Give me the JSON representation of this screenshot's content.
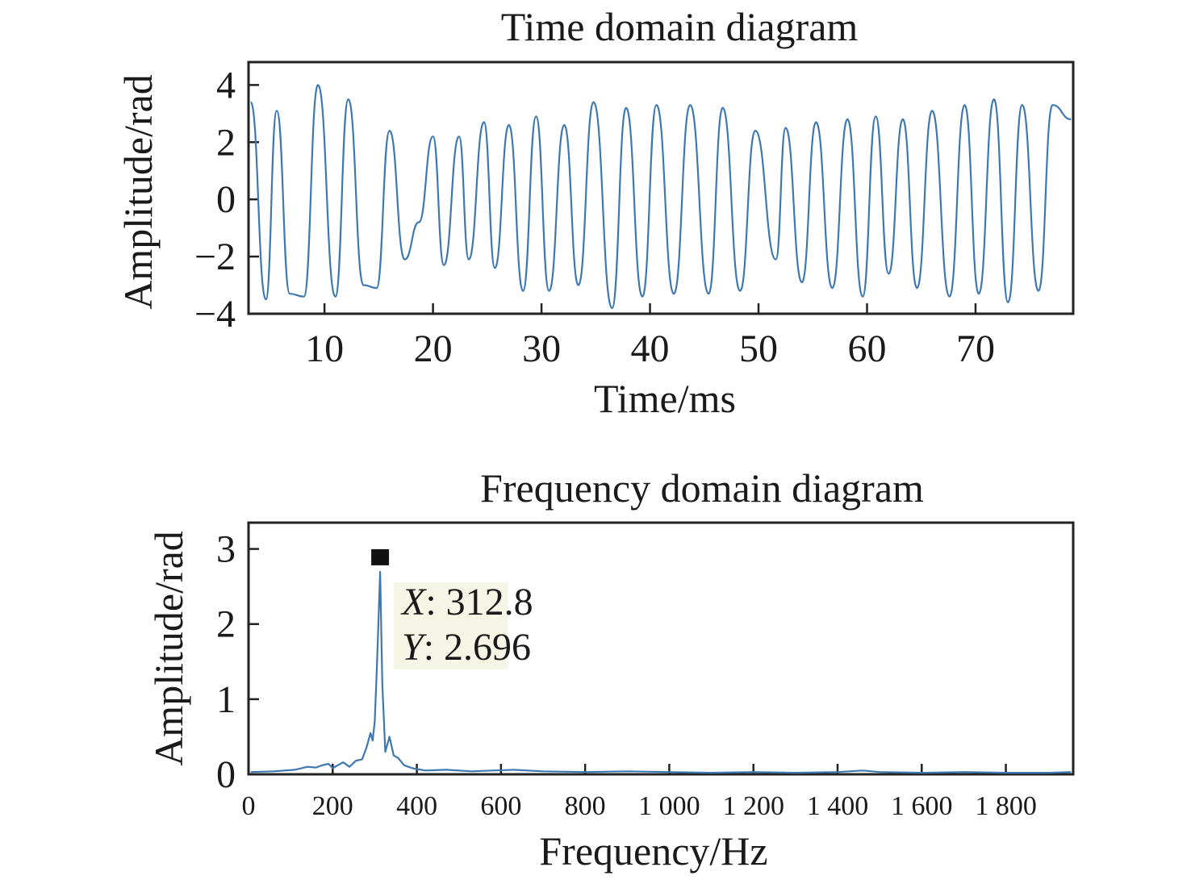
{
  "chart_data": [
    {
      "type": "line",
      "title": "Time domain diagram",
      "xlabel": "Time/ms",
      "ylabel": "Amplitude/rad",
      "xlim": [
        3,
        79
      ],
      "ylim": [
        -4,
        4.8
      ],
      "xticks": [
        10,
        20,
        30,
        40,
        50,
        60,
        70
      ],
      "xtick_labels": [
        "10",
        "20",
        "30",
        "40",
        "50",
        "60",
        "70"
      ],
      "yticks": [
        4,
        2,
        0,
        -2,
        -4
      ],
      "ytick_labels": [
        "4",
        "2",
        "0",
        "−2",
        "−4"
      ],
      "grid": false,
      "series": [
        {
          "color": "#3f78b0",
          "x": [
            3.2,
            4.6,
            5.6,
            6.8,
            8.1,
            9.4,
            11.0,
            12.2,
            13.6,
            14.8,
            16.0,
            17.4,
            18.7,
            20.0,
            21.0,
            22.4,
            23.3,
            24.7,
            25.7,
            27.0,
            28.3,
            29.5,
            30.7,
            32.1,
            33.4,
            34.8,
            36.5,
            37.8,
            39.3,
            40.6,
            42.2,
            43.7,
            45.4,
            46.7,
            48.3,
            49.7,
            51.6,
            52.5,
            54.0,
            55.3,
            56.8,
            58.2,
            59.6,
            60.8,
            62.0,
            63.3,
            64.6,
            66.0,
            67.6,
            69.0,
            70.3,
            71.7,
            73.0,
            74.3,
            75.8,
            77.1,
            78.8
          ],
          "y": [
            3.4,
            -3.5,
            3.1,
            -3.3,
            -3.4,
            4.0,
            -3.4,
            3.5,
            -3.0,
            -3.1,
            2.4,
            -2.1,
            -0.8,
            2.2,
            -2.3,
            2.2,
            -2.1,
            2.7,
            -2.4,
            2.6,
            -3.2,
            2.9,
            -3.2,
            2.6,
            -3.0,
            3.4,
            -3.8,
            3.2,
            -3.4,
            3.3,
            -3.3,
            3.3,
            -3.3,
            3.2,
            -3.2,
            2.4,
            -2.1,
            2.5,
            -2.9,
            2.7,
            -3.1,
            2.8,
            -3.4,
            2.9,
            -2.6,
            2.8,
            -3.1,
            3.1,
            -3.4,
            3.3,
            -3.3,
            3.5,
            -3.6,
            3.3,
            -3.2,
            3.3,
            2.8
          ]
        }
      ]
    },
    {
      "type": "line",
      "title": "Frequency domain diagram",
      "xlabel": "Frequency/Hz",
      "ylabel": "Amplitude/rad",
      "xlim": [
        0,
        1960
      ],
      "ylim": [
        0,
        3.35
      ],
      "xticks": [
        0,
        200,
        400,
        600,
        800,
        1000,
        1200,
        1400,
        1600,
        1800
      ],
      "xtick_labels": [
        "0",
        "200",
        "400",
        "600",
        "800",
        "1 000",
        "1 200",
        "1 400",
        "1 600",
        "1 800"
      ],
      "yticks": [
        0,
        1,
        2,
        3
      ],
      "ytick_labels": [
        "0",
        "1",
        "2",
        "3"
      ],
      "grid": false,
      "series": [
        {
          "color": "#3f78b0",
          "x": [
            5,
            60,
            110,
            140,
            160,
            175,
            190,
            200,
            212,
            225,
            240,
            255,
            270,
            280,
            290,
            295,
            300,
            305,
            312.8,
            318,
            325,
            335,
            345,
            355,
            370,
            390,
            420,
            470,
            530,
            580,
            630,
            700,
            800,
            900,
            1000,
            1100,
            1200,
            1300,
            1400,
            1460,
            1500,
            1600,
            1700,
            1800,
            1900,
            1955
          ],
          "y": [
            0.03,
            0.04,
            0.06,
            0.1,
            0.09,
            0.12,
            0.14,
            0.08,
            0.12,
            0.16,
            0.1,
            0.18,
            0.2,
            0.35,
            0.55,
            0.45,
            0.7,
            1.4,
            2.696,
            1.2,
            0.3,
            0.5,
            0.25,
            0.22,
            0.12,
            0.08,
            0.05,
            0.06,
            0.04,
            0.05,
            0.06,
            0.04,
            0.03,
            0.04,
            0.03,
            0.02,
            0.03,
            0.02,
            0.03,
            0.05,
            0.03,
            0.02,
            0.03,
            0.02,
            0.02,
            0.03
          ]
        }
      ],
      "annotations": [
        {
          "x": 312.8,
          "y": 2.696,
          "x_label": "X",
          "x_value": ": 312.8",
          "y_label": "Y",
          "y_value": ": 2.696"
        }
      ]
    }
  ]
}
